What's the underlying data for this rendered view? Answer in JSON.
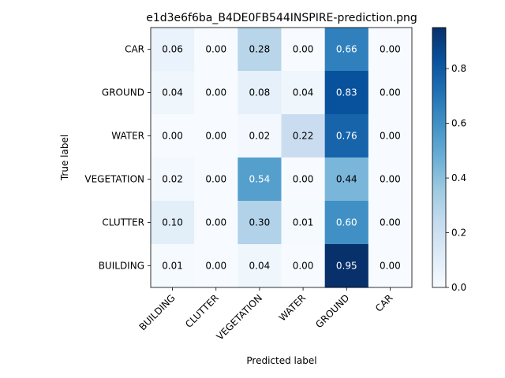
{
  "chart_data": {
    "type": "heatmap",
    "title": "e1d3e6f6ba_B4DE0FB544INSPIRE-prediction.png",
    "xlabel": "Predicted label",
    "ylabel": "True label",
    "x_categories": [
      "BUILDING",
      "CLUTTER",
      "VEGETATION",
      "WATER",
      "GROUND",
      "CAR"
    ],
    "y_categories": [
      "CAR",
      "GROUND",
      "WATER",
      "VEGETATION",
      "CLUTTER",
      "BUILDING"
    ],
    "values": [
      [
        0.06,
        0.0,
        0.28,
        0.0,
        0.66,
        0.0
      ],
      [
        0.04,
        0.0,
        0.08,
        0.04,
        0.83,
        0.0
      ],
      [
        0.0,
        0.0,
        0.02,
        0.22,
        0.76,
        0.0
      ],
      [
        0.02,
        0.0,
        0.54,
        0.0,
        0.44,
        0.0
      ],
      [
        0.1,
        0.0,
        0.3,
        0.01,
        0.6,
        0.0
      ],
      [
        0.01,
        0.0,
        0.04,
        0.0,
        0.95,
        0.0
      ]
    ],
    "value_labels": [
      [
        "0.06",
        "0.00",
        "0.28",
        "0.00",
        "0.66",
        "0.00"
      ],
      [
        "0.04",
        "0.00",
        "0.08",
        "0.04",
        "0.83",
        "0.00"
      ],
      [
        "0.00",
        "0.00",
        "0.02",
        "0.22",
        "0.76",
        "0.00"
      ],
      [
        "0.02",
        "0.00",
        "0.54",
        "0.00",
        "0.44",
        "0.00"
      ],
      [
        "0.10",
        "0.00",
        "0.30",
        "0.01",
        "0.60",
        "0.00"
      ],
      [
        "0.01",
        "0.00",
        "0.04",
        "0.00",
        "0.95",
        "0.00"
      ]
    ],
    "colormap": "Blues",
    "colorbar": {
      "range": [
        0.0,
        0.95
      ],
      "ticks": [
        0.0,
        0.2,
        0.4,
        0.6,
        0.8
      ],
      "tick_labels": [
        "0.0",
        "0.2",
        "0.4",
        "0.6",
        "0.8"
      ]
    },
    "colors": {
      "cmap_low": "#f7fbff",
      "cmap_high": "#08306b",
      "text_dark": "#000000",
      "text_light": "#ffffff"
    }
  }
}
